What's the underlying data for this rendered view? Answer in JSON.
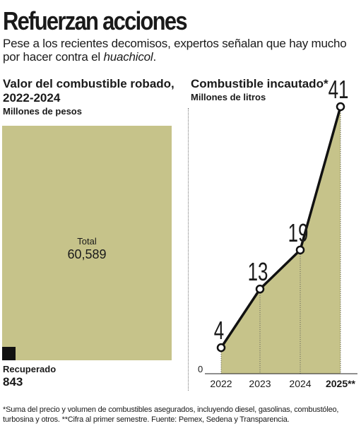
{
  "header": {
    "title": "Refuerzan acciones",
    "intro_text": "Pese a los recientes decomisos, expertos señalan que hay mucho por hacer contra el ",
    "intro_emphasis": "huachicol",
    "intro_end": "."
  },
  "left_panel": {
    "title": "Valor del combustible robado, 2022-2024",
    "subtitle": "Millones de pesos",
    "total_label": "Total",
    "total_value": "60,589",
    "recovered_label": "Recuperado",
    "recovered_value": "843"
  },
  "right_panel": {
    "title": "Combustible incautado*",
    "subtitle": "Millones de litros"
  },
  "chart_data": [
    {
      "type": "area",
      "title": "Valor del combustible robado, 2022-2024",
      "subtitle": "Millones de pesos",
      "categories": [
        "Total",
        "Recuperado"
      ],
      "values": [
        60589,
        843
      ],
      "colors": {
        "total": "#c6c38a",
        "recovered": "#111111"
      }
    },
    {
      "type": "line",
      "title": "Combustible incautado*",
      "ylabel": "Millones de litros",
      "categories": [
        "2022",
        "2023",
        "2024",
        "2025**"
      ],
      "values": [
        4,
        13,
        19,
        41
      ],
      "ylim": [
        0,
        41
      ],
      "y_ticks": [
        "0"
      ],
      "area_fill": true,
      "grid": "vertical dotted",
      "colors": {
        "line": "#111111",
        "fill": "#c6c38a"
      }
    }
  ],
  "footnote": "*Suma del precio y volumen de combustibles asegurados, incluyendo diesel, gasolinas, combustóleo, turbosina y otros. **Cifra al primer semestre. Fuente: Pemex, Sedena y Transparencia."
}
